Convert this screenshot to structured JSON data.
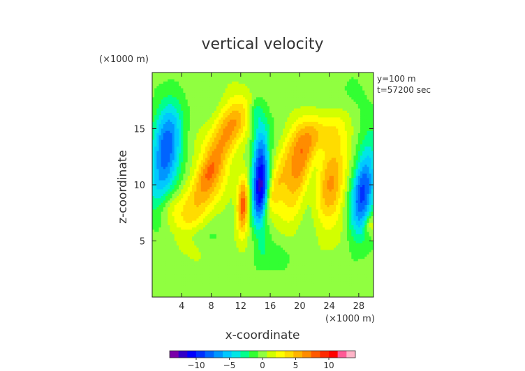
{
  "chart_data": {
    "type": "heatmap",
    "title": "vertical velocity",
    "xlabel": "x-coordinate",
    "ylabel": "z-coordinate",
    "x_unit": "(×1000 m)",
    "y_unit": "(×1000 m)",
    "annotations": [
      "y=100 m",
      "t=57200 sec"
    ],
    "xlim": [
      0,
      30
    ],
    "ylim": [
      0,
      20
    ],
    "xticks": [
      4,
      8,
      12,
      16,
      20,
      24,
      28
    ],
    "yticks": [
      5,
      10,
      15
    ],
    "colorbar": {
      "min": -14,
      "max": 14,
      "ticks": [
        -10,
        -5,
        0,
        5,
        10
      ],
      "colors": [
        "#7a00a8",
        "#3300c8",
        "#0000ff",
        "#0030ff",
        "#0064ff",
        "#0096ff",
        "#00c8ff",
        "#00e6e6",
        "#00ff8c",
        "#32ff32",
        "#90ff40",
        "#d2ff00",
        "#ffff00",
        "#ffdc00",
        "#ffb400",
        "#ff8c00",
        "#ff5a00",
        "#ff2800",
        "#ff0000",
        "#ff5a96",
        "#ffb4c8"
      ]
    },
    "features": [
      {
        "x": 1.8,
        "z": 12.8,
        "sx": 1.4,
        "sy": 3.0,
        "amp": -8.5,
        "rho": 0.35
      },
      {
        "x": 2.2,
        "z": 8.0,
        "sx": 1.2,
        "sy": 1.0,
        "amp": 2.0,
        "rho": 0
      },
      {
        "x": 6.0,
        "z": 9.0,
        "sx": 1.6,
        "sy": 2.0,
        "amp": 3.0,
        "rho": 0.7
      },
      {
        "x": 8.8,
        "z": 12.0,
        "sx": 1.6,
        "sy": 2.6,
        "amp": 3.8,
        "rho": 0.75
      },
      {
        "x": 10.8,
        "z": 15.2,
        "sx": 1.6,
        "sy": 1.4,
        "amp": 3.5,
        "rho": 0.5
      },
      {
        "x": 7.8,
        "z": 11.3,
        "sx": 0.9,
        "sy": 1.0,
        "amp": 2.0,
        "rho": 0.6
      },
      {
        "x": 12.3,
        "z": 8.2,
        "sx": 0.55,
        "sy": 1.7,
        "amp": 8.5,
        "rho": 0.1
      },
      {
        "x": 14.7,
        "z": 10.2,
        "sx": 0.8,
        "sy": 3.2,
        "amp": -12.0,
        "rho": 0.05
      },
      {
        "x": 15.9,
        "z": 8.4,
        "sx": 0.7,
        "sy": 1.3,
        "amp": 3.5,
        "rho": 0.8
      },
      {
        "x": 18.6,
        "z": 11.8,
        "sx": 1.3,
        "sy": 2.2,
        "amp": 4.0,
        "rho": 0.55
      },
      {
        "x": 20.3,
        "z": 11.5,
        "sx": 1.2,
        "sy": 2.4,
        "amp": 5.0,
        "rho": 0.6
      },
      {
        "x": 21.8,
        "z": 10.8,
        "sx": 0.9,
        "sy": 1.8,
        "amp": -1.5,
        "rho": 0.5
      },
      {
        "x": 24.3,
        "z": 10.5,
        "sx": 1.4,
        "sy": 3.0,
        "amp": 6.0,
        "rho": 0.3
      },
      {
        "x": 22.7,
        "z": 14.5,
        "sx": 1.8,
        "sy": 1.2,
        "amp": 2.5,
        "rho": 0.3
      },
      {
        "x": 28.6,
        "z": 9.5,
        "sx": 1.1,
        "sy": 2.6,
        "amp": -9.0,
        "rho": 0.4
      },
      {
        "x": 29.5,
        "z": 6.5,
        "sx": 0.5,
        "sy": 0.6,
        "amp": 3.0,
        "rho": 0
      },
      {
        "x": 14.0,
        "z": 16.5,
        "sx": 0.6,
        "sy": 0.8,
        "amp": -2.5,
        "rho": 0
      },
      {
        "x": 6.0,
        "z": 5.5,
        "sx": 2.0,
        "sy": 0.6,
        "amp": -1.2,
        "rho": 0
      },
      {
        "x": 17.0,
        "z": 3.5,
        "sx": 2.0,
        "sy": 1.0,
        "amp": -1.0,
        "rho": 0
      },
      {
        "x": 26.0,
        "z": 17.5,
        "sx": 3.0,
        "sy": 1.2,
        "amp": -1.0,
        "rho": 0
      }
    ]
  }
}
